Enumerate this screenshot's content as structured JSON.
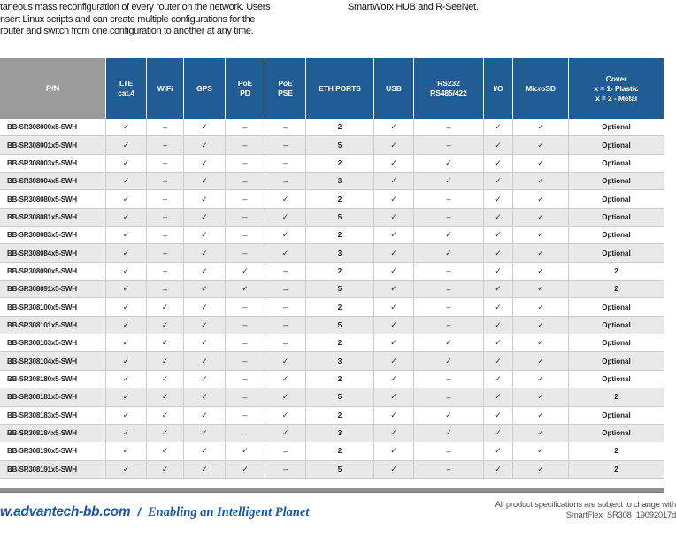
{
  "intro": {
    "left_lines": [
      "taneous mass reconfiguration of every router on the network. Users",
      "nsert Linux scripts and can create multiple configurations for the",
      "router and switch from one configuration to another at any time."
    ],
    "right_line": "SmartWorx HUB and R-SeeNet."
  },
  "table": {
    "columns": [
      "P/N",
      "LTE\ncat.4",
      "WiFi",
      "GPS",
      "PoE\nPD",
      "PoE\nPSE",
      "ETH PORTS",
      "USB",
      "RS232\nRS485/422",
      "I/O",
      "MicroSD",
      "Cover\nx = 1- Plastic\nx = 2 - Metal"
    ],
    "rows": [
      [
        "BB-SR308000x5-SWH",
        "✓",
        "–",
        "✓",
        "–",
        "–",
        "2",
        "✓",
        "–",
        "✓",
        "✓",
        "Optional"
      ],
      [
        "BB-SR308001x5-SWH",
        "✓",
        "–",
        "✓",
        "–",
        "–",
        "5",
        "✓",
        "–",
        "✓",
        "✓",
        "Optional"
      ],
      [
        "BB-SR308003x5-SWH",
        "✓",
        "–",
        "✓",
        "–",
        "–",
        "2",
        "✓",
        "✓",
        "✓",
        "✓",
        "Optional"
      ],
      [
        "BB-SR308004x5-SWH",
        "✓",
        "–",
        "✓",
        "–",
        "–",
        "3",
        "✓",
        "✓",
        "✓",
        "✓",
        "Optional"
      ],
      [
        "BB-SR308080x5-SWH",
        "✓",
        "–",
        "✓",
        "–",
        "✓",
        "2",
        "✓",
        "–",
        "✓",
        "✓",
        "Optional"
      ],
      [
        "BB-SR308081x5-SWH",
        "✓",
        "–",
        "✓",
        "–",
        "✓",
        "5",
        "✓",
        "–",
        "✓",
        "✓",
        "Optional"
      ],
      [
        "BB-SR308083x5-SWH",
        "✓",
        "–",
        "✓",
        "–",
        "✓",
        "2",
        "✓",
        "✓",
        "✓",
        "✓",
        "Optional"
      ],
      [
        "BB-SR308084x5-SWH",
        "✓",
        "–",
        "✓",
        "–",
        "✓",
        "3",
        "✓",
        "✓",
        "✓",
        "✓",
        "Optional"
      ],
      [
        "BB-SR308090x5-SWH",
        "✓",
        "–",
        "✓",
        "✓",
        "–",
        "2",
        "✓",
        "–",
        "✓",
        "✓",
        "2"
      ],
      [
        "BB-SR308091x5-SWH",
        "✓",
        "–",
        "✓",
        "✓",
        "–",
        "5",
        "✓",
        "–",
        "✓",
        "✓",
        "2"
      ],
      [
        "BB-SR308100x5-SWH",
        "✓",
        "✓",
        "✓",
        "–",
        "–",
        "2",
        "✓",
        "–",
        "✓",
        "✓",
        "Optional"
      ],
      [
        "BB-SR308101x5-SWH",
        "✓",
        "✓",
        "✓",
        "–",
        "–",
        "5",
        "✓",
        "–",
        "✓",
        "✓",
        "Optional"
      ],
      [
        "BB-SR308103x5-SWH",
        "✓",
        "✓",
        "✓",
        "–",
        "–",
        "2",
        "✓",
        "✓",
        "✓",
        "✓",
        "Optional"
      ],
      [
        "BB-SR308104x5-SWH",
        "✓",
        "✓",
        "✓",
        "–",
        "✓",
        "3",
        "✓",
        "✓",
        "✓",
        "✓",
        "Optional"
      ],
      [
        "BB-SR308180x5-SWH",
        "✓",
        "✓",
        "✓",
        "–",
        "✓",
        "2",
        "✓",
        "–",
        "✓",
        "✓",
        "Optional"
      ],
      [
        "BB-SR308181x5-SWH",
        "✓",
        "✓",
        "✓",
        "–",
        "✓",
        "5",
        "✓",
        "–",
        "✓",
        "✓",
        "2"
      ],
      [
        "BB-SR308183x5-SWH",
        "✓",
        "✓",
        "✓",
        "–",
        "✓",
        "2",
        "✓",
        "✓",
        "✓",
        "✓",
        "Optional"
      ],
      [
        "BB-SR308184x5-SWH",
        "✓",
        "✓",
        "✓",
        "–",
        "✓",
        "3",
        "✓",
        "✓",
        "✓",
        "✓",
        "Optional"
      ],
      [
        "BB-SR308190x5-SWH",
        "✓",
        "✓",
        "✓",
        "✓",
        "–",
        "2",
        "✓",
        "–",
        "✓",
        "✓",
        "2"
      ],
      [
        "BB-SR308191x5-SWH",
        "✓",
        "✓",
        "✓",
        "✓",
        "–",
        "5",
        "✓",
        "–",
        "✓",
        "✓",
        "2"
      ]
    ]
  },
  "footer": {
    "site": "w.advantech-bb.com",
    "separator": "/",
    "tagline": "Enabling an Intelligent Planet",
    "note_line1": "All product specifications are subject to change with",
    "note_line2": "SmartFlex_SR308_19092017d"
  },
  "colors": {
    "header_blue": "#205d94",
    "header_gray": "#9b9b9b",
    "row_alt": "#e9e9e9",
    "footer_blue": "#1b55a6",
    "footer_bar": "#8f8f8f"
  }
}
